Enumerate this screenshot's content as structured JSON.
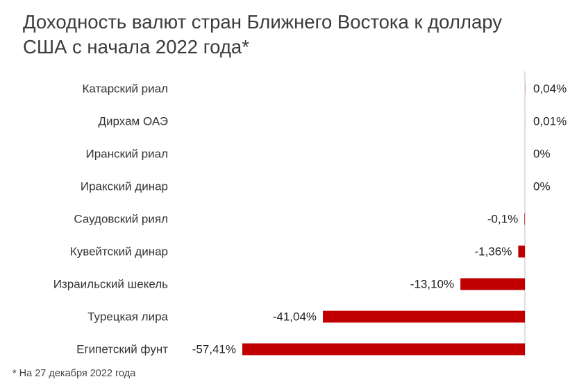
{
  "chart_data": {
    "type": "bar",
    "orientation": "horizontal",
    "title": "Доходность валют стран Ближнего Востока к доллару США с начала 2022 года*",
    "categories": [
      "Катарский риал",
      "Дирхам ОАЭ",
      "Иранский риал",
      "Иракский динар",
      "Саудовский риял",
      "Кувейтский динар",
      "Израильский шекель",
      "Турецкая лира",
      "Египетский фунт"
    ],
    "values": [
      0.04,
      0.01,
      0,
      0,
      -0.1,
      -1.36,
      -13.1,
      -41.04,
      -57.41
    ],
    "value_labels": [
      "0,04%",
      "0,01%",
      "0%",
      "0%",
      "-0,1%",
      "-1,36%",
      "-13,10%",
      "-41,04%",
      "-57,41%"
    ],
    "xlim": [
      -57.41,
      0.5
    ],
    "xlabel": "",
    "ylabel": "",
    "grid": false,
    "legend": "none",
    "colors": {
      "bar": "#c00000",
      "axis": "#bfbfbf"
    },
    "footnote": "* На 27 декабря 2022 года"
  }
}
